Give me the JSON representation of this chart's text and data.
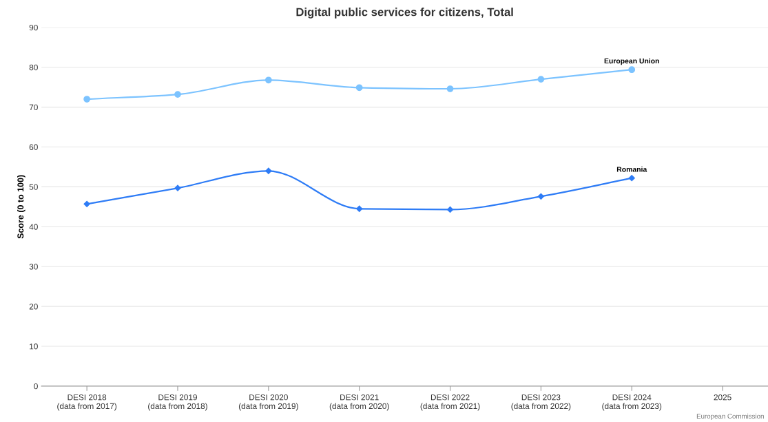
{
  "chart_data": {
    "type": "line",
    "title": "Digital public services for citizens, Total",
    "ylabel": "Score (0 to 100)",
    "categories": [
      "DESI 2018\n(data from 2017)",
      "DESI 2019\n(data from 2018)",
      "DESI 2020\n(data from 2019)",
      "DESI 2021\n(data from 2020)",
      "DESI 2022\n(data from 2021)",
      "DESI 2023\n(data from 2022)",
      "DESI 2024\n(data from 2023)",
      "2025"
    ],
    "series": [
      {
        "name": "European Union",
        "color": "#7cc3ff",
        "marker": "circle",
        "values": [
          72.0,
          73.2,
          76.8,
          74.9,
          74.6,
          77.0,
          79.4,
          null
        ]
      },
      {
        "name": "Romania",
        "color": "#2e7cf6",
        "marker": "diamond",
        "values": [
          45.7,
          49.7,
          54.0,
          44.5,
          44.3,
          47.6,
          52.2,
          null
        ]
      }
    ],
    "ylim": [
      0,
      90
    ],
    "yticks": [
      0,
      10,
      20,
      30,
      40,
      50,
      60,
      70,
      80,
      90
    ],
    "grid": "y",
    "legend": false,
    "annotations": [
      "European Commission"
    ]
  }
}
